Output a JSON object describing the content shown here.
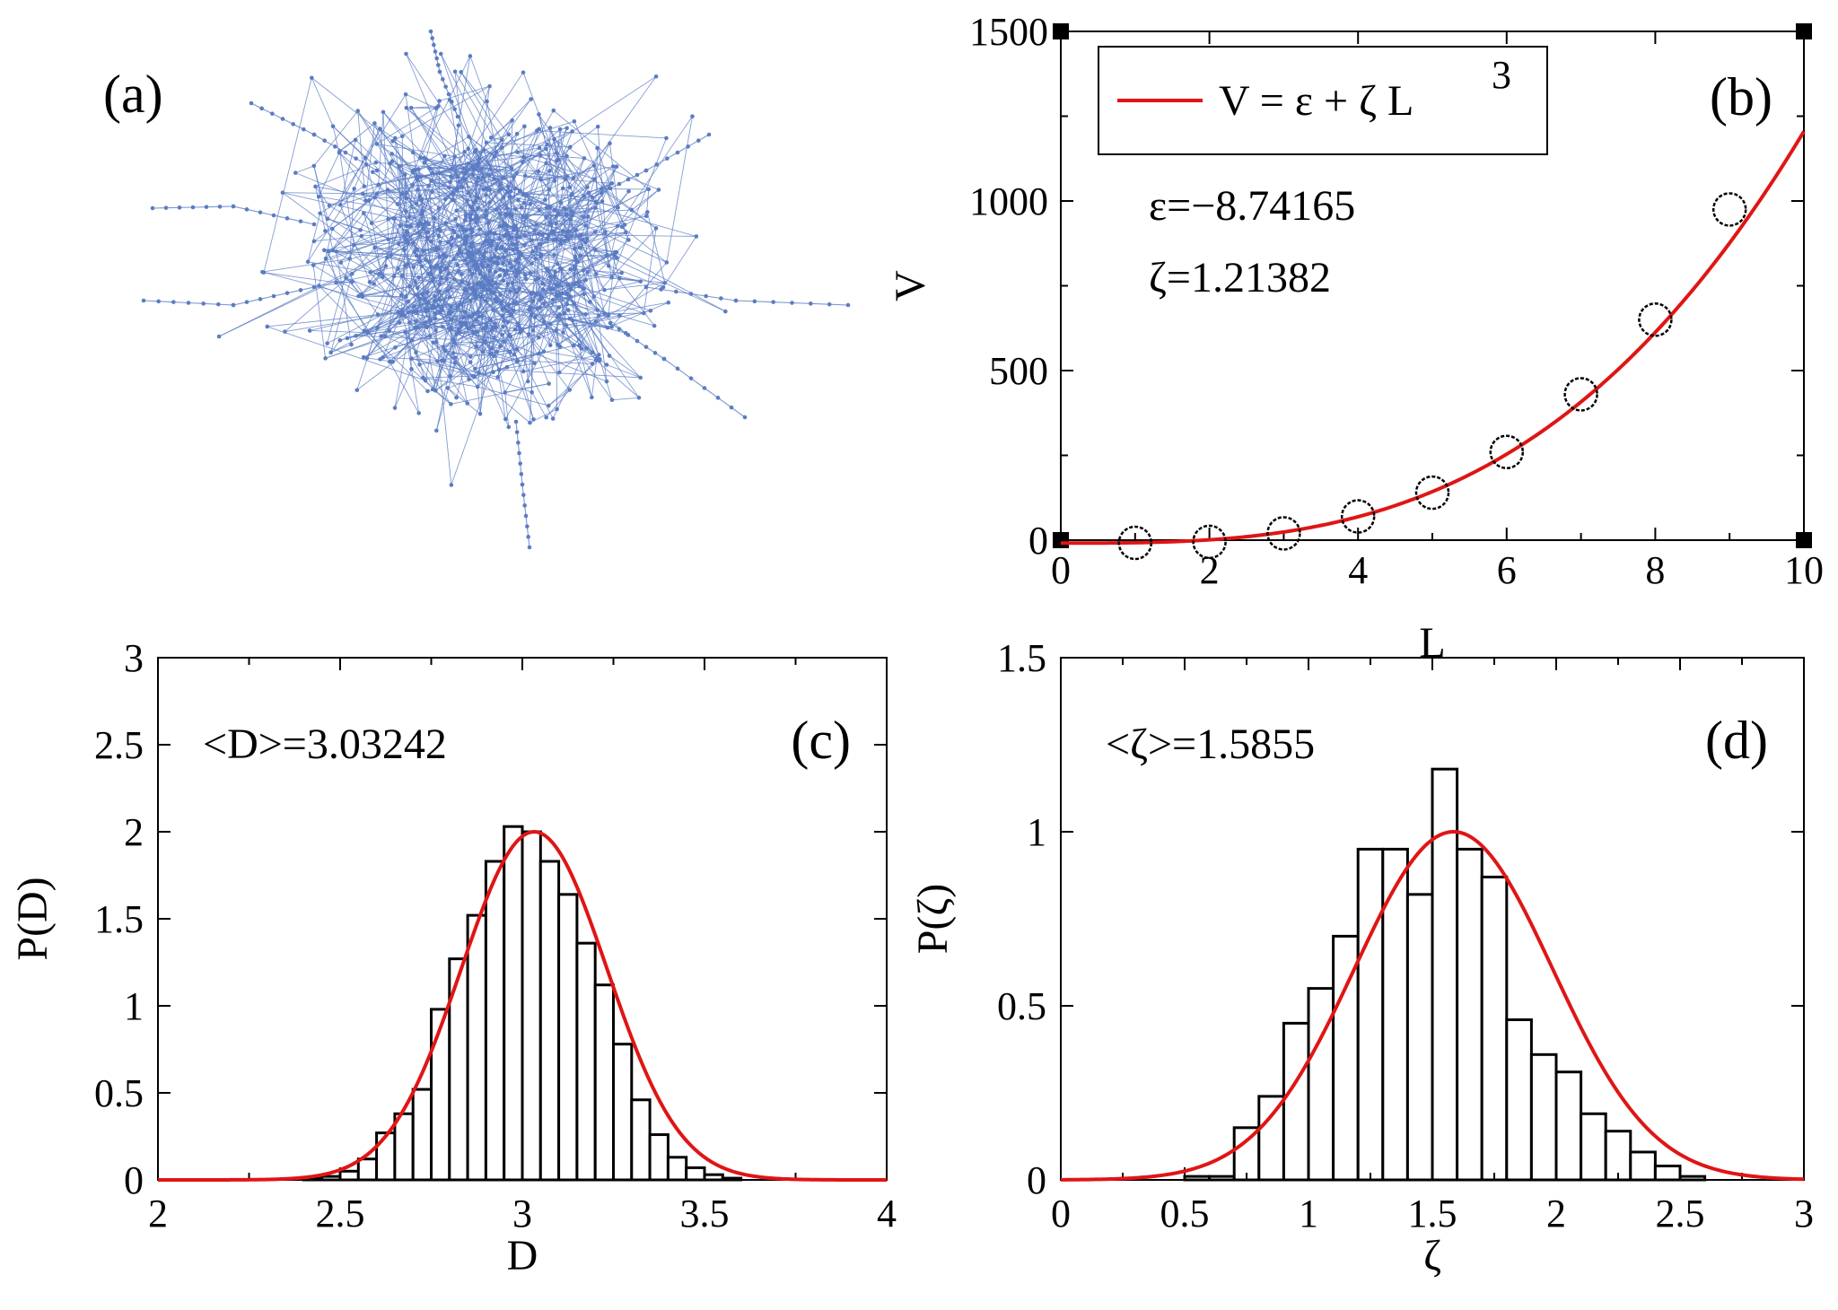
{
  "colors": {
    "fit": "#e01515",
    "network": "#5b7cc4",
    "axis": "#000000",
    "background": "#ffffff"
  },
  "panel_a": {
    "tag": "(a)"
  },
  "chart_data": [
    {
      "id": "b",
      "type": "scatter",
      "tag": "(b)",
      "xlabel": "L",
      "ylabel": "V",
      "xlim": [
        0,
        10
      ],
      "ylim": [
        0,
        1500
      ],
      "xticks": [
        0,
        2,
        4,
        6,
        8,
        10
      ],
      "yticks": [
        0,
        500,
        1000,
        1500
      ],
      "points": {
        "x": [
          1,
          2,
          3,
          4,
          5,
          6,
          7,
          8,
          9
        ],
        "y": [
          -8,
          -5,
          20,
          70,
          140,
          260,
          430,
          650,
          975
        ]
      },
      "fit": {
        "epsilon": -8.74165,
        "zeta": 1.21382,
        "legend_prefix": "V = ε  + ζ  L",
        "legend_sup": "3"
      },
      "annotations": [
        "ε=−8.74165",
        "ζ=1.21382"
      ],
      "legend": "top-left"
    },
    {
      "id": "c",
      "type": "bar",
      "tag": "(c)",
      "xlabel": "D",
      "ylabel": "P(D)",
      "xlim": [
        2,
        4
      ],
      "ylim": [
        0,
        3
      ],
      "xticks": [
        2,
        2.5,
        3,
        3.5,
        4
      ],
      "ytick_labels": [
        "0",
        "0.5",
        "1",
        "1.5",
        "2",
        "2.5",
        "3"
      ],
      "bin_width": 0.05,
      "bin_starts": [
        2.4,
        2.45,
        2.5,
        2.55,
        2.6,
        2.65,
        2.7,
        2.75,
        2.8,
        2.85,
        2.9,
        2.95,
        3.0,
        3.05,
        3.1,
        3.15,
        3.2,
        3.25,
        3.3,
        3.35,
        3.4,
        3.45,
        3.5,
        3.55,
        3.6,
        3.65,
        3.7
      ],
      "values": [
        0.01,
        0.02,
        0.05,
        0.12,
        0.27,
        0.38,
        0.52,
        0.98,
        1.27,
        1.52,
        1.83,
        2.03,
        2.0,
        1.83,
        1.64,
        1.36,
        1.12,
        0.78,
        0.46,
        0.26,
        0.13,
        0.07,
        0.03,
        0.01,
        0.0,
        0.0,
        0.0
      ],
      "fit": {
        "type": "gaussian",
        "mean": 3.03242,
        "sigma": 0.2,
        "peak": 2.0
      },
      "annotation": "<D>=3.03242"
    },
    {
      "id": "d",
      "type": "bar",
      "tag": "(d)",
      "xlabel": "ζ",
      "ylabel": "P(ζ)",
      "xlim": [
        0,
        3
      ],
      "ylim": [
        0,
        1.5
      ],
      "xticks": [
        0,
        0.5,
        1,
        1.5,
        2,
        2.5,
        3
      ],
      "ytick_labels": [
        "0",
        "0.5",
        "1",
        "1.5"
      ],
      "bin_width": 0.1,
      "bin_starts": [
        0.5,
        0.6,
        0.7,
        0.8,
        0.9,
        1.0,
        1.1,
        1.2,
        1.3,
        1.4,
        1.5,
        1.6,
        1.7,
        1.8,
        1.9,
        2.0,
        2.1,
        2.2,
        2.3,
        2.4,
        2.5,
        2.6,
        2.7
      ],
      "values": [
        0.01,
        0.01,
        0.15,
        0.24,
        0.45,
        0.55,
        0.7,
        0.95,
        0.95,
        0.82,
        1.18,
        0.95,
        0.87,
        0.46,
        0.36,
        0.31,
        0.19,
        0.14,
        0.08,
        0.04,
        0.01,
        0.0,
        0.0
      ],
      "fit": {
        "type": "gaussian",
        "mean": 1.5855,
        "sigma": 0.4,
        "peak": 1.0
      },
      "annotation": "<ζ>=1.5855"
    }
  ]
}
